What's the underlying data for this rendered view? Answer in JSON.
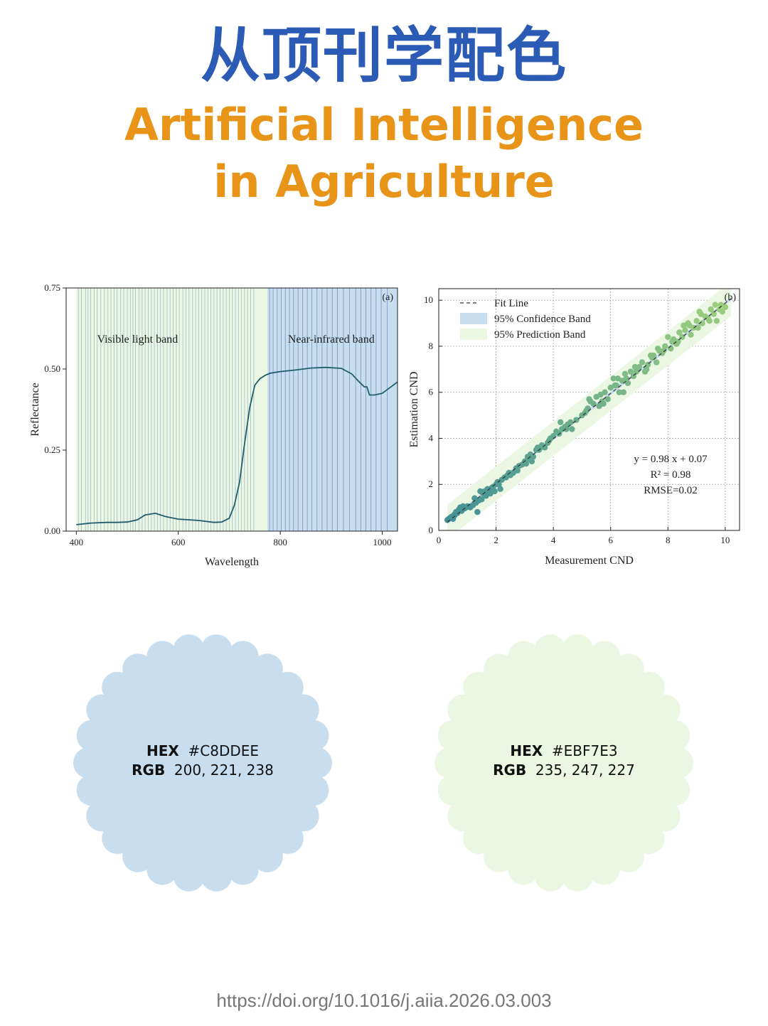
{
  "header": {
    "title_cn": "从顶刊学配色",
    "title_en_line1": "Artificial Intelligence",
    "title_en_line2": "in Agriculture"
  },
  "chart_data": [
    {
      "type": "line",
      "panel_label": "(a)",
      "xlabel": "Wavelength",
      "ylabel": "Reflectance",
      "xlim": [
        380,
        1030
      ],
      "ylim": [
        0,
        0.75
      ],
      "x_ticks": [
        400,
        600,
        800,
        1000
      ],
      "y_ticks": [
        "0.00",
        "0.25",
        "0.50",
        "0.75"
      ],
      "annotations": [
        "Visible light band",
        "Near-infrared band"
      ],
      "regions": [
        {
          "name": "Visible light band",
          "x": [
            400,
            775
          ],
          "color": "#EBF7E3"
        },
        {
          "name": "Near-infrared band",
          "x": [
            775,
            1030
          ],
          "color": "#C8DDEE"
        }
      ],
      "series": [
        {
          "x": [
            400,
            430,
            460,
            480,
            500,
            520,
            535,
            555,
            575,
            600,
            640,
            670,
            685,
            700,
            710,
            720,
            730,
            740,
            750,
            760,
            770,
            780,
            800,
            830,
            860,
            890,
            920,
            940,
            955,
            965,
            970,
            975,
            985,
            1000,
            1030
          ],
          "values": [
            0.02,
            0.025,
            0.027,
            0.027,
            0.028,
            0.035,
            0.05,
            0.055,
            0.045,
            0.037,
            0.033,
            0.027,
            0.028,
            0.04,
            0.08,
            0.15,
            0.27,
            0.38,
            0.45,
            0.47,
            0.48,
            0.487,
            0.492,
            0.497,
            0.503,
            0.505,
            0.502,
            0.485,
            0.46,
            0.445,
            0.445,
            0.42,
            0.42,
            0.425,
            0.46
          ],
          "color": "#1f5e6c"
        }
      ],
      "band_lines": [
        404,
        410,
        418,
        423,
        428,
        435,
        441,
        448,
        455,
        462,
        468,
        474,
        480,
        487,
        493,
        500,
        506,
        511,
        516,
        523,
        529,
        535,
        541,
        547,
        553,
        559,
        565,
        571,
        578,
        584,
        590,
        596,
        602,
        609,
        615,
        621,
        628,
        634,
        640,
        646,
        652,
        658,
        664,
        670,
        676,
        682,
        688,
        694,
        700,
        706,
        712,
        718,
        724,
        730,
        736,
        742,
        748,
        779,
        786,
        794,
        802,
        810,
        818,
        826,
        835,
        844,
        853,
        862,
        872,
        882,
        892,
        902,
        912,
        924,
        936,
        948,
        958,
        968,
        978,
        988,
        998,
        1010
      ]
    },
    {
      "type": "scatter",
      "panel_label": "(b)",
      "xlabel": "Measurement CND",
      "ylabel": "Estimation CND",
      "xlim": [
        0,
        10.5
      ],
      "ylim": [
        0,
        10.5
      ],
      "x_ticks": [
        0,
        2,
        4,
        6,
        8,
        10
      ],
      "y_ticks": [
        0,
        2,
        4,
        6,
        8,
        10
      ],
      "grid": true,
      "legend": {
        "position": "top-left",
        "entries": [
          "Fit Line",
          "95% Confidence Band",
          "95% Prediction Band"
        ]
      },
      "fit": {
        "slope": 0.98,
        "intercept": 0.07
      },
      "confidence_band_halfwidth": 0.08,
      "prediction_band_halfwidth": 0.75,
      "band_colors": {
        "confidence": "#C8DDEE",
        "prediction": "#EBF7E3"
      },
      "point_color_low": "#3f8f9a",
      "point_color_high": "#9ccf7c",
      "stats_text": [
        "y = 0.98 x + 0.07",
        "R² = 0.98",
        "RMSE=0.02"
      ],
      "points_x": [
        0.3,
        0.35,
        0.4,
        0.45,
        0.5,
        0.55,
        0.6,
        0.65,
        0.7,
        0.75,
        0.8,
        0.85,
        0.9,
        0.95,
        1.0,
        1.1,
        1.2,
        1.3,
        1.4,
        1.5,
        1.55,
        1.6,
        1.65,
        1.7,
        1.75,
        1.8,
        1.85,
        1.9,
        1.95,
        2.0,
        2.05,
        2.1,
        2.2,
        2.3,
        2.4,
        2.5,
        2.6,
        2.7,
        2.8,
        2.9,
        3.0,
        3.05,
        3.1,
        3.15,
        3.2,
        3.3,
        3.4,
        3.5,
        3.6,
        3.7,
        3.8,
        3.9,
        4.0,
        4.1,
        4.2,
        4.3,
        4.4,
        4.5,
        4.6,
        4.8,
        5.0,
        5.1,
        5.2,
        5.3,
        5.4,
        5.5,
        5.6,
        5.7,
        5.8,
        5.9,
        6.0,
        6.1,
        6.2,
        6.3,
        6.4,
        6.5,
        6.6,
        6.7,
        6.8,
        6.9,
        7.0,
        7.1,
        7.2,
        7.3,
        7.4,
        7.5,
        7.6,
        7.7,
        7.8,
        7.9,
        8.0,
        8.1,
        8.2,
        8.3,
        8.4,
        8.5,
        8.6,
        8.7,
        8.8,
        8.9,
        9.0,
        9.1,
        9.2,
        9.3,
        9.4,
        9.5,
        9.6,
        9.7,
        9.8,
        9.9,
        10.0,
        1.35,
        1.45,
        2.15,
        2.45,
        3.25,
        3.45,
        4.25,
        4.65,
        5.25,
        5.75,
        6.25,
        6.45,
        6.85,
        7.25,
        7.65,
        8.15,
        8.55,
        9.05,
        9.45,
        9.85,
        0.55,
        0.85,
        1.25,
        1.75,
        2.35,
        2.75,
        3.55,
        3.85,
        4.45,
        5.15,
        5.65,
        6.15,
        6.55,
        6.95,
        7.45,
        7.85,
        8.35,
        8.75,
        9.15,
        9.65
      ],
      "points_y": [
        0.45,
        0.5,
        0.55,
        0.6,
        0.5,
        0.7,
        0.8,
        0.75,
        0.9,
        1.0,
        0.85,
        1.05,
        0.95,
        1.0,
        1.05,
        1.0,
        1.1,
        1.2,
        1.3,
        1.35,
        1.6,
        1.7,
        1.5,
        1.8,
        1.75,
        1.6,
        1.85,
        1.9,
        1.7,
        2.0,
        2.1,
        2.0,
        2.2,
        2.3,
        2.4,
        2.4,
        2.5,
        2.7,
        2.8,
        2.85,
        3.0,
        2.9,
        3.2,
        3.1,
        3.3,
        3.2,
        3.5,
        3.5,
        3.7,
        3.6,
        3.8,
        4.0,
        4.1,
        4.3,
        4.2,
        4.4,
        4.5,
        4.6,
        4.7,
        4.8,
        5.0,
        5.1,
        5.3,
        5.6,
        5.5,
        5.8,
        5.4,
        5.6,
        6.0,
        5.7,
        6.2,
        6.6,
        6.3,
        6.0,
        6.5,
        6.8,
        6.4,
        6.9,
        6.7,
        6.9,
        7.1,
        7.3,
        6.9,
        7.2,
        7.6,
        7.6,
        7.3,
        7.8,
        7.7,
        8.0,
        8.4,
        7.9,
        8.3,
        8.1,
        8.6,
        8.4,
        8.7,
        9.0,
        8.5,
        8.8,
        9.1,
        9.5,
        9.0,
        9.3,
        9.2,
        9.6,
        9.4,
        9.1,
        9.6,
        9.5,
        9.7,
        0.8,
        1.7,
        1.8,
        2.5,
        3.0,
        3.6,
        4.7,
        4.4,
        5.7,
        5.5,
        6.6,
        6.0,
        7.1,
        7.0,
        7.9,
        8.2,
        8.9,
        8.8,
        9.1,
        9.8,
        0.65,
        1.0,
        1.4,
        1.7,
        2.3,
        2.6,
        3.6,
        3.9,
        4.4,
        5.2,
        5.9,
        6.3,
        6.6,
        7.0,
        7.5,
        7.8,
        8.2,
        8.9,
        9.4,
        9.8
      ]
    }
  ],
  "swatches": [
    {
      "hex_label": "HEX",
      "hex_value": "#C8DDEE",
      "rgb_label": "RGB",
      "rgb_value": "200, 221, 238",
      "color": "#C8DDEE"
    },
    {
      "hex_label": "HEX",
      "hex_value": "#EBF7E3",
      "rgb_label": "RGB",
      "rgb_value": "235, 247, 227",
      "color": "#EBF7E3"
    }
  ],
  "footer": {
    "doi": "https://doi.org/10.1016/j.aiia.2026.03.003"
  }
}
